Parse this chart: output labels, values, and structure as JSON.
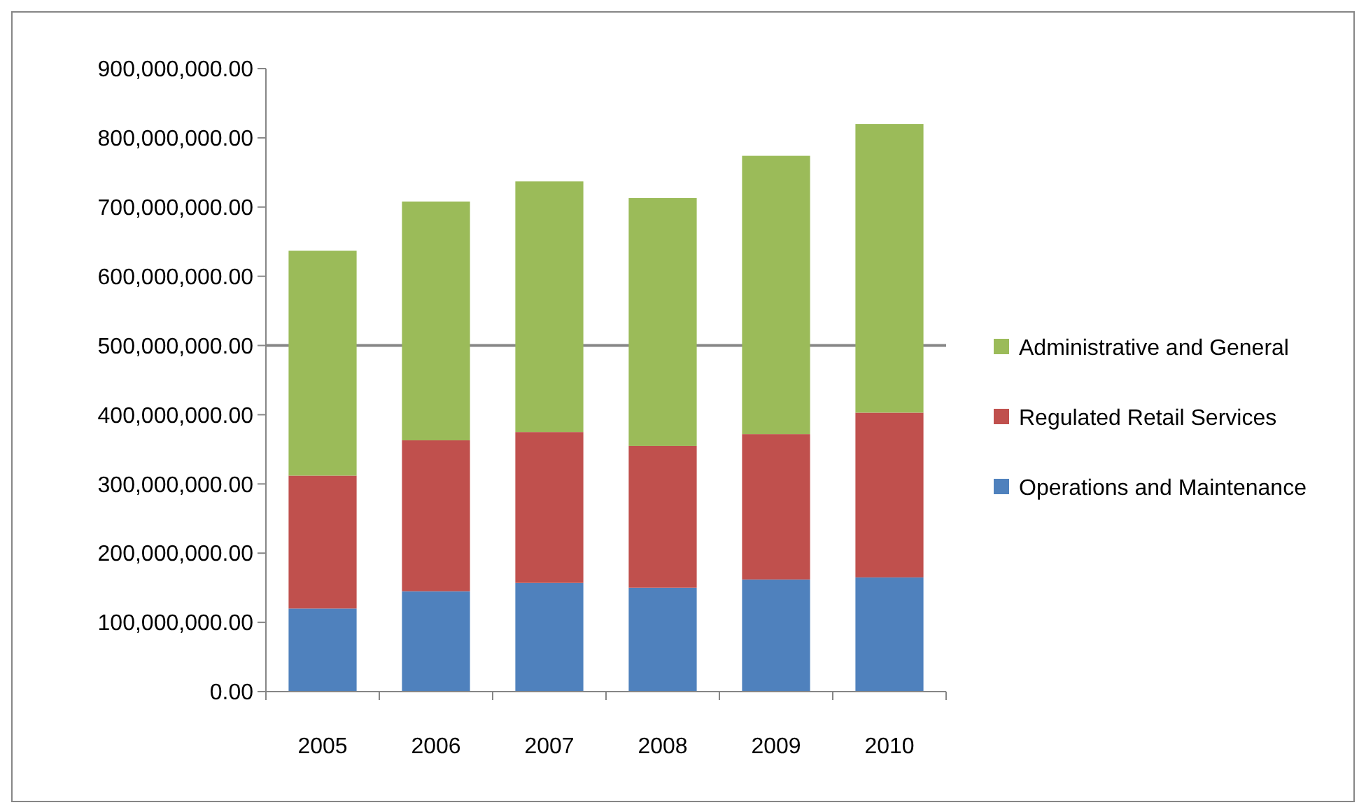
{
  "chart_data": {
    "type": "bar",
    "stacked": true,
    "categories": [
      "2005",
      "2006",
      "2007",
      "2008",
      "2009",
      "2010"
    ],
    "series": [
      {
        "name": "Operations and Maintenance",
        "color": "#4f81bd",
        "values": [
          120000000,
          145000000,
          157000000,
          150000000,
          162000000,
          165000000
        ]
      },
      {
        "name": "Regulated Retail Services",
        "color": "#c0504d",
        "values": [
          192000000,
          218000000,
          218000000,
          205000000,
          210000000,
          238000000
        ]
      },
      {
        "name": "Administrative and General",
        "color": "#9bbb59",
        "values": [
          325000000,
          345000000,
          362000000,
          358000000,
          402000000,
          417000000
        ]
      }
    ],
    "ylim": [
      0,
      900000000
    ],
    "yticks": [
      {
        "value": 0,
        "label": "0.00"
      },
      {
        "value": 100000000,
        "label": "100,000,000.00"
      },
      {
        "value": 200000000,
        "label": "200,000,000.00"
      },
      {
        "value": 300000000,
        "label": "300,000,000.00"
      },
      {
        "value": 400000000,
        "label": "400,000,000.00"
      },
      {
        "value": 500000000,
        "label": "500,000,000.00"
      },
      {
        "value": 600000000,
        "label": "600,000,000.00"
      },
      {
        "value": 700000000,
        "label": "700,000,000.00"
      },
      {
        "value": 800000000,
        "label": "800,000,000.00"
      },
      {
        "value": 900000000,
        "label": "900,000,000.00"
      }
    ],
    "ref_lines": [
      {
        "axis": "y",
        "value": 500000000,
        "color": "#868686"
      }
    ],
    "legend": "right"
  }
}
